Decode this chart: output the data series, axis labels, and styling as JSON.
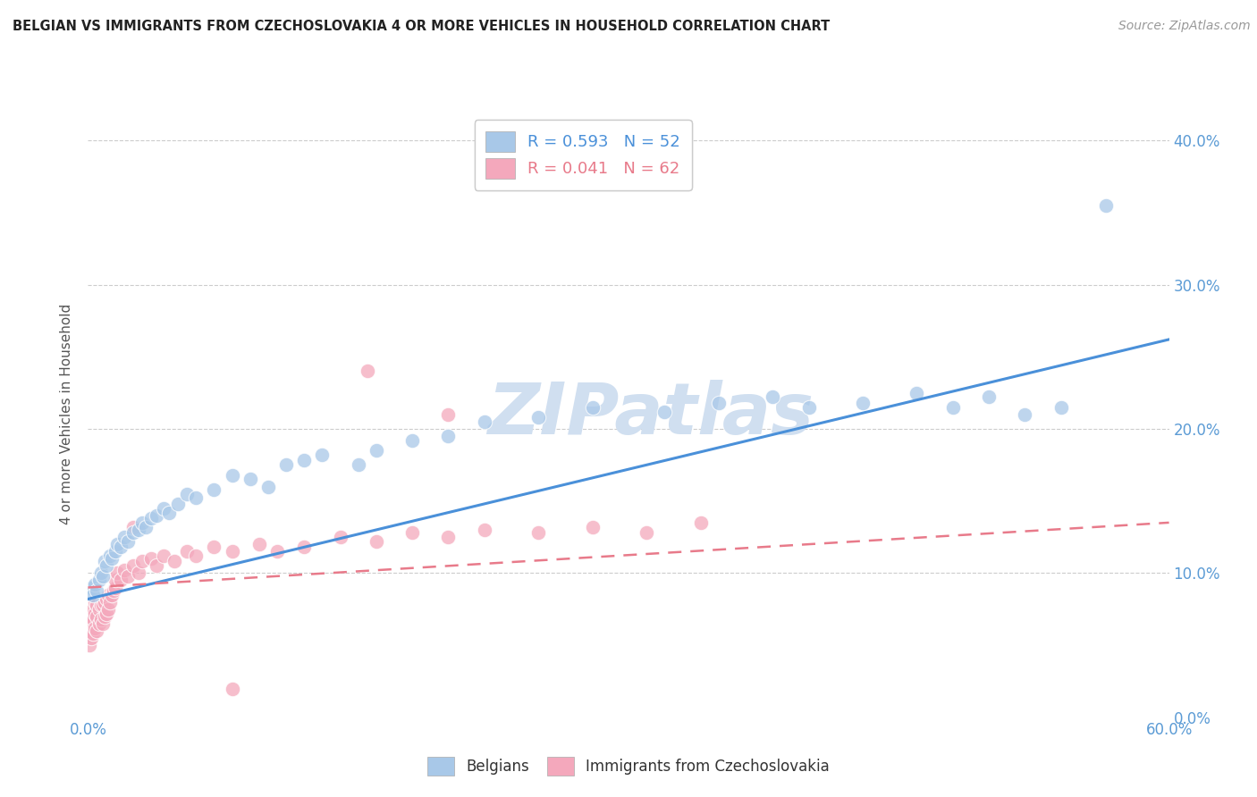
{
  "title": "BELGIAN VS IMMIGRANTS FROM CZECHOSLOVAKIA 4 OR MORE VEHICLES IN HOUSEHOLD CORRELATION CHART",
  "source": "Source: ZipAtlas.com",
  "ylabel": "4 or more Vehicles in Household",
  "xlim": [
    0.0,
    0.6
  ],
  "ylim": [
    0.0,
    0.42
  ],
  "legend_blue_label": "R = 0.593   N = 52",
  "legend_pink_label": "R = 0.041   N = 62",
  "legend_blue_label2": "Belgians",
  "legend_pink_label2": "Immigrants from Czechoslovakia",
  "blue_color": "#a8c8e8",
  "pink_color": "#f4a8bc",
  "trend_blue_color": "#4a90d9",
  "trend_pink_color": "#e87a8a",
  "watermark": "ZIPatlas",
  "watermark_color": "#d0dff0",
  "background_color": "#ffffff",
  "blue_scatter_x": [
    0.002,
    0.003,
    0.004,
    0.005,
    0.006,
    0.007,
    0.008,
    0.009,
    0.01,
    0.012,
    0.013,
    0.015,
    0.016,
    0.018,
    0.02,
    0.022,
    0.025,
    0.028,
    0.03,
    0.032,
    0.035,
    0.038,
    0.042,
    0.045,
    0.05,
    0.055,
    0.06,
    0.07,
    0.08,
    0.09,
    0.1,
    0.11,
    0.12,
    0.13,
    0.15,
    0.16,
    0.18,
    0.2,
    0.22,
    0.25,
    0.28,
    0.32,
    0.35,
    0.38,
    0.4,
    0.43,
    0.46,
    0.48,
    0.5,
    0.52,
    0.54,
    0.565
  ],
  "blue_scatter_y": [
    0.09,
    0.085,
    0.092,
    0.088,
    0.095,
    0.1,
    0.098,
    0.108,
    0.105,
    0.112,
    0.11,
    0.115,
    0.12,
    0.118,
    0.125,
    0.122,
    0.128,
    0.13,
    0.135,
    0.132,
    0.138,
    0.14,
    0.145,
    0.142,
    0.148,
    0.155,
    0.152,
    0.158,
    0.168,
    0.165,
    0.16,
    0.175,
    0.178,
    0.182,
    0.175,
    0.185,
    0.192,
    0.195,
    0.205,
    0.208,
    0.215,
    0.212,
    0.218,
    0.222,
    0.215,
    0.218,
    0.225,
    0.215,
    0.222,
    0.21,
    0.215,
    0.355
  ],
  "pink_scatter_x": [
    0.001,
    0.001,
    0.002,
    0.002,
    0.002,
    0.003,
    0.003,
    0.003,
    0.004,
    0.004,
    0.004,
    0.005,
    0.005,
    0.005,
    0.006,
    0.006,
    0.007,
    0.007,
    0.008,
    0.008,
    0.009,
    0.009,
    0.01,
    0.01,
    0.011,
    0.011,
    0.012,
    0.013,
    0.014,
    0.015,
    0.015,
    0.016,
    0.018,
    0.02,
    0.022,
    0.025,
    0.028,
    0.03,
    0.035,
    0.038,
    0.042,
    0.048,
    0.055,
    0.06,
    0.07,
    0.08,
    0.095,
    0.105,
    0.12,
    0.14,
    0.16,
    0.18,
    0.2,
    0.22,
    0.25,
    0.28,
    0.31,
    0.34,
    0.2,
    0.155,
    0.025,
    0.08
  ],
  "pink_scatter_y": [
    0.05,
    0.06,
    0.055,
    0.065,
    0.07,
    0.058,
    0.068,
    0.075,
    0.062,
    0.072,
    0.08,
    0.06,
    0.07,
    0.078,
    0.065,
    0.075,
    0.068,
    0.078,
    0.065,
    0.078,
    0.07,
    0.08,
    0.072,
    0.082,
    0.075,
    0.085,
    0.08,
    0.085,
    0.088,
    0.09,
    0.095,
    0.1,
    0.095,
    0.102,
    0.098,
    0.105,
    0.1,
    0.108,
    0.11,
    0.105,
    0.112,
    0.108,
    0.115,
    0.112,
    0.118,
    0.115,
    0.12,
    0.115,
    0.118,
    0.125,
    0.122,
    0.128,
    0.125,
    0.13,
    0.128,
    0.132,
    0.128,
    0.135,
    0.21,
    0.24,
    0.132,
    0.02
  ]
}
